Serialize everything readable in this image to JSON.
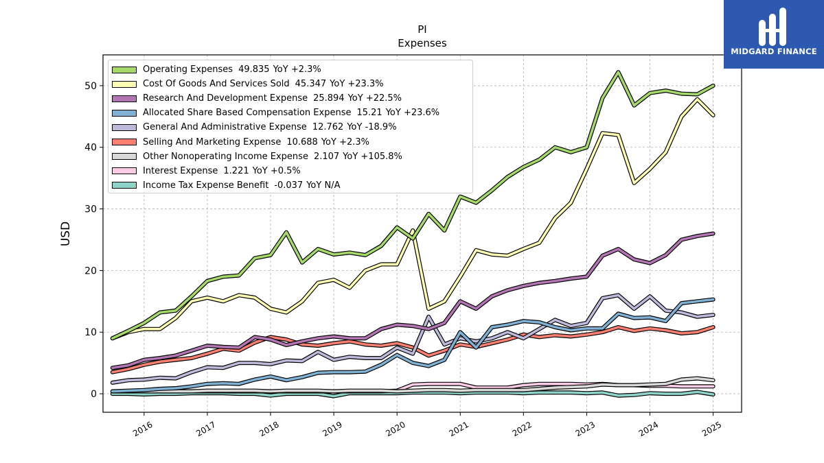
{
  "brand": {
    "name": "MIDGARD FINANCE",
    "color": "#2d5ab0"
  },
  "chart_data": {
    "type": "line",
    "title": "PI",
    "subtitle": "Expenses",
    "ylabel": "USD",
    "xlabel": "",
    "ylim": [
      -3,
      55
    ],
    "xlim": [
      2015.35,
      2025.45
    ],
    "y_ticks": [
      0,
      10,
      20,
      30,
      40,
      50
    ],
    "x_ticks": [
      2016,
      2017,
      2018,
      2019,
      2020,
      2021,
      2022,
      2023,
      2024,
      2025
    ],
    "grid": true,
    "legend_position": "top-left",
    "x": [
      2015.5,
      2015.75,
      2016.0,
      2016.25,
      2016.5,
      2016.75,
      2017.0,
      2017.25,
      2017.5,
      2017.75,
      2018.0,
      2018.25,
      2018.5,
      2018.75,
      2019.0,
      2019.25,
      2019.5,
      2019.75,
      2020.0,
      2020.25,
      2020.5,
      2020.75,
      2021.0,
      2021.25,
      2021.5,
      2021.75,
      2022.0,
      2022.25,
      2022.5,
      2022.75,
      2023.0,
      2023.25,
      2023.5,
      2023.75,
      2024.0,
      2024.25,
      2024.5,
      2024.75,
      2025.0
    ],
    "series": [
      {
        "name": "Operating Expenses",
        "value": "49.835",
        "yoy": "YoY +2.3%",
        "color": "#a6d96a",
        "values": [
          9.0,
          10.2,
          11.5,
          13.2,
          13.5,
          15.8,
          18.3,
          19.0,
          19.2,
          22.0,
          22.5,
          26.2,
          21.3,
          23.5,
          22.6,
          22.9,
          22.5,
          24.0,
          27.0,
          25.2,
          29.2,
          26.5,
          32.0,
          31.0,
          33.0,
          35.2,
          36.8,
          38.0,
          40.0,
          39.2,
          40.0,
          48.0,
          52.2,
          46.8,
          48.8,
          49.2,
          48.7,
          48.6,
          50.0
        ]
      },
      {
        "name": "Cost Of Goods And Services Sold",
        "value": "45.347",
        "yoy": "YoY +23.3%",
        "color": "#ffffb3",
        "values": [
          9.0,
          10.0,
          10.5,
          10.5,
          12.3,
          15.0,
          15.6,
          15.0,
          16.0,
          15.6,
          13.8,
          13.2,
          15.0,
          18.0,
          18.5,
          17.2,
          20.0,
          21.0,
          21.0,
          26.5,
          13.8,
          15.0,
          19.0,
          23.3,
          22.6,
          22.4,
          23.5,
          24.5,
          28.5,
          31.0,
          36.5,
          42.3,
          42.0,
          34.2,
          36.5,
          39.2,
          45.0,
          47.8,
          45.2
        ]
      },
      {
        "name": "Research And Development Expense",
        "value": "25.894",
        "yoy": "YoY +22.5%",
        "color": "#b276b2",
        "values": [
          4.2,
          4.6,
          5.5,
          5.8,
          6.2,
          7.0,
          7.8,
          7.6,
          7.5,
          9.2,
          8.8,
          7.9,
          8.5,
          9.0,
          9.3,
          9.0,
          9.0,
          10.5,
          11.2,
          11.0,
          10.5,
          11.5,
          15.0,
          13.8,
          15.8,
          16.8,
          17.5,
          18.0,
          18.3,
          18.7,
          19.0,
          22.4,
          23.5,
          21.8,
          21.2,
          22.5,
          25.0,
          25.6,
          26.0
        ]
      },
      {
        "name": "Allocated Share Based Compensation Expense",
        "value": "15.21",
        "yoy": "YoY +23.6%",
        "color": "#80b1d3",
        "values": [
          0.4,
          0.5,
          0.6,
          0.8,
          0.9,
          1.2,
          1.6,
          1.7,
          1.6,
          2.3,
          2.8,
          2.2,
          2.7,
          3.4,
          3.5,
          3.5,
          3.6,
          4.7,
          6.3,
          5.0,
          4.5,
          5.5,
          10.0,
          7.5,
          10.8,
          11.2,
          11.8,
          11.6,
          10.8,
          10.3,
          10.6,
          10.6,
          13.0,
          12.3,
          12.4,
          11.8,
          14.7,
          15.0,
          15.3
        ]
      },
      {
        "name": "General And Administrative Expense",
        "value": "12.762",
        "yoy": "YoY -18.9%",
        "color": "#bebada",
        "values": [
          1.8,
          2.2,
          2.3,
          2.6,
          2.5,
          3.5,
          4.3,
          4.2,
          5.0,
          5.0,
          4.8,
          5.4,
          5.3,
          6.8,
          5.5,
          6.0,
          5.8,
          5.8,
          7.5,
          6.5,
          12.5,
          8.0,
          9.0,
          8.5,
          9.0,
          10.0,
          9.0,
          10.5,
          12.0,
          11.0,
          11.5,
          15.5,
          16.0,
          13.8,
          15.8,
          13.5,
          13.2,
          12.5,
          12.8
        ]
      },
      {
        "name": "Selling And Marketing Expense",
        "value": "10.688",
        "yoy": "YoY +2.3%",
        "color": "#fb8072",
        "values": [
          3.5,
          4.0,
          4.7,
          5.2,
          5.5,
          5.8,
          6.5,
          7.3,
          7.0,
          8.3,
          9.2,
          8.8,
          8.0,
          7.8,
          8.2,
          8.5,
          8.0,
          7.8,
          8.2,
          7.5,
          6.2,
          7.0,
          8.0,
          7.6,
          8.2,
          8.8,
          9.6,
          9.2,
          9.5,
          9.3,
          9.6,
          10.0,
          10.8,
          10.2,
          10.6,
          10.3,
          9.8,
          10.0,
          10.8
        ]
      },
      {
        "name": "Other Nonoperating Income Expense",
        "value": "2.107",
        "yoy": "YoY +105.8%",
        "color": "#d9d9d9",
        "values": [
          0.4,
          0.4,
          0.4,
          0.4,
          0.4,
          0.4,
          0.5,
          0.5,
          0.5,
          0.5,
          0.4,
          0.5,
          0.5,
          0.5,
          0.4,
          0.5,
          0.5,
          0.5,
          0.4,
          0.5,
          0.6,
          0.6,
          0.5,
          0.6,
          0.6,
          0.6,
          0.6,
          0.8,
          1.0,
          1.1,
          1.2,
          1.5,
          1.4,
          1.4,
          1.5,
          1.6,
          2.3,
          2.5,
          2.2
        ]
      },
      {
        "name": "Interest Expense",
        "value": "1.221",
        "yoy": "YoY +0.5%",
        "color": "#fccde5",
        "values": [
          0.4,
          0.4,
          0.4,
          0.4,
          0.4,
          0.4,
          0.4,
          0.4,
          0.4,
          0.4,
          0.4,
          0.4,
          0.4,
          0.4,
          0.4,
          0.4,
          0.4,
          0.4,
          0.5,
          1.5,
          1.6,
          1.6,
          1.6,
          1.0,
          1.0,
          1.0,
          1.4,
          1.6,
          1.6,
          1.6,
          1.5,
          1.6,
          1.4,
          1.4,
          1.3,
          1.3,
          1.2,
          1.2,
          1.2
        ]
      },
      {
        "name": "Income Tax Expense Benefit",
        "value": "-0.037",
        "yoy": "YoY N/A",
        "color": "#8dd3c7",
        "values": [
          0.0,
          0.0,
          -0.1,
          0.0,
          0.0,
          0.1,
          0.1,
          0.1,
          0.0,
          0.0,
          -0.3,
          0.0,
          0.0,
          0.0,
          -0.4,
          0.1,
          0.1,
          0.1,
          0.1,
          0.2,
          0.2,
          0.2,
          0.1,
          0.2,
          0.2,
          0.2,
          0.1,
          0.2,
          0.2,
          0.2,
          0.1,
          0.2,
          -0.3,
          -0.2,
          0.1,
          0.0,
          0.0,
          0.3,
          -0.1
        ]
      }
    ]
  }
}
